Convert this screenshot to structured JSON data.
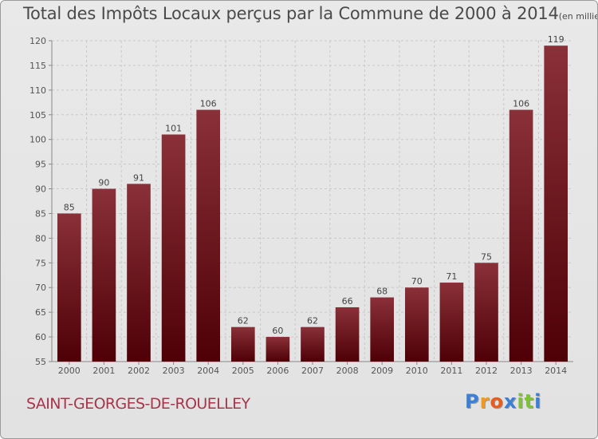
{
  "title": {
    "main": "Total des Impôts Locaux perçus par la Commune de 2000 à 2014",
    "unit": "(en milliers d'€)"
  },
  "commune_name": "SAINT-GEORGES-DE-ROUELLEY",
  "brand": {
    "letters": [
      "P",
      "r",
      "o",
      "x",
      "i",
      "t",
      "i"
    ],
    "colors": [
      "#3a7fd8",
      "#f39a1b",
      "#e85c1f",
      "#3a7fd8",
      "#7cc33a",
      "#7cc33a",
      "#3a7fd8"
    ]
  },
  "colors": {
    "bar_top": "#8a3038",
    "bar_bottom": "#4e0006",
    "grid": "#c8c8c8",
    "axis": "#888888"
  },
  "chart_data": {
    "type": "bar",
    "title": "Total des Impôts Locaux perçus par la Commune de 2000 à 2014",
    "xlabel": "",
    "ylabel": "",
    "categories": [
      "2000",
      "2001",
      "2002",
      "2003",
      "2004",
      "2005",
      "2006",
      "2007",
      "2008",
      "2009",
      "2010",
      "2011",
      "2012",
      "2013",
      "2014"
    ],
    "values": [
      85,
      90,
      91,
      101,
      106,
      62,
      60,
      62,
      66,
      68,
      70,
      71,
      75,
      106,
      119
    ],
    "ylim": [
      55,
      120
    ],
    "yticks": [
      55,
      60,
      65,
      70,
      75,
      80,
      85,
      90,
      95,
      100,
      105,
      110,
      115,
      120
    ],
    "grid": true
  }
}
